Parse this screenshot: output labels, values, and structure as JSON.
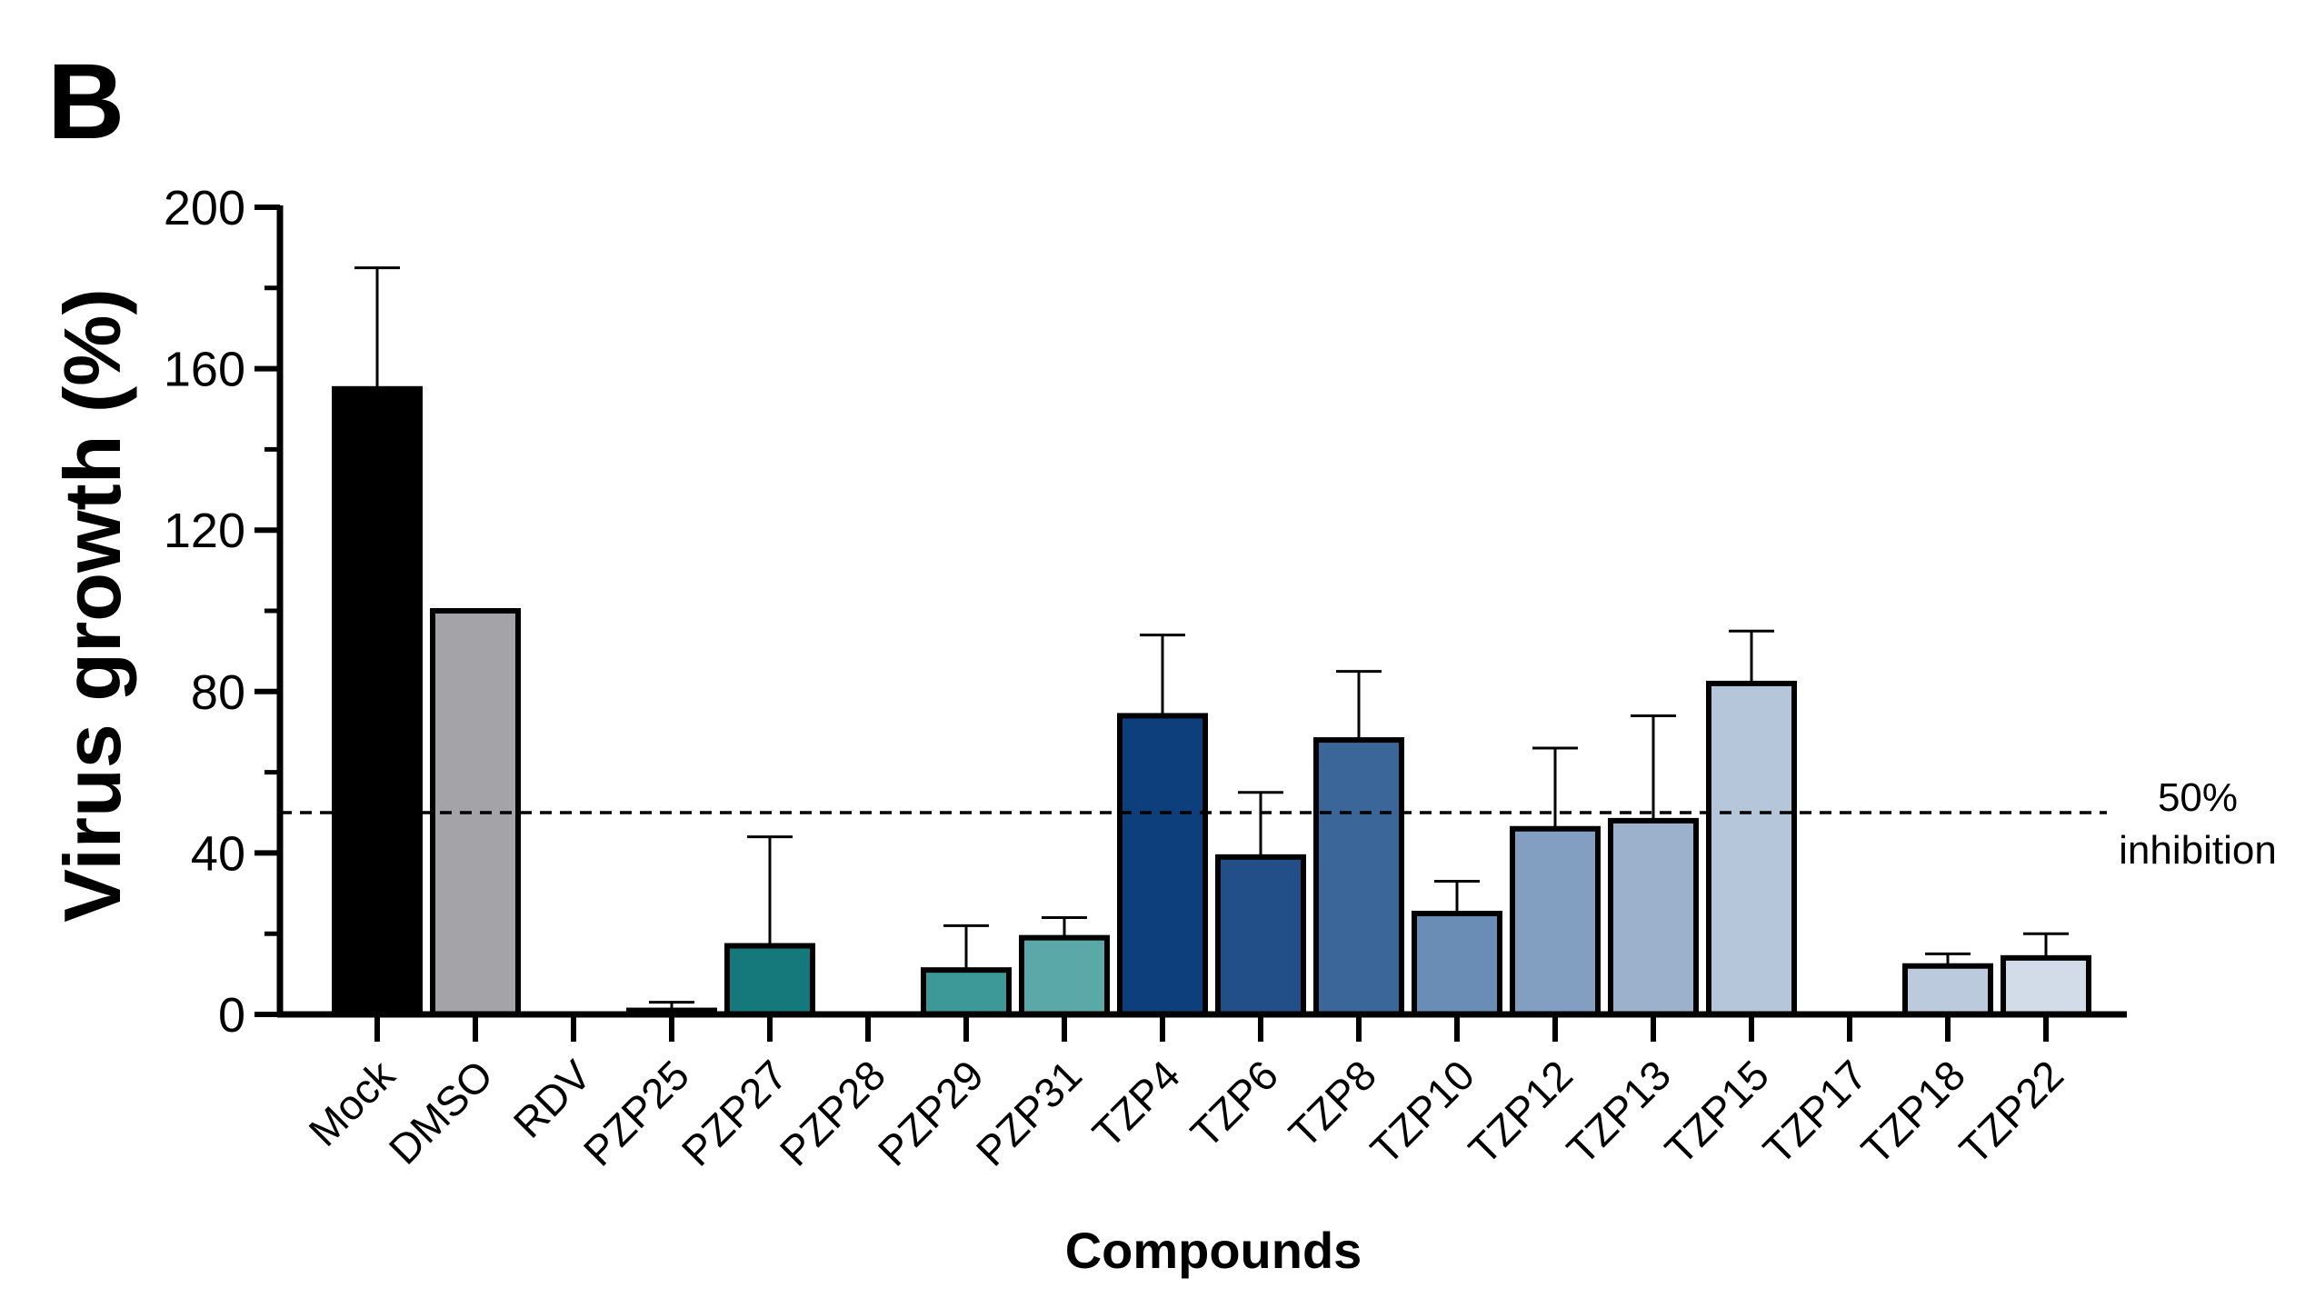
{
  "panel_label": "B",
  "chart_data": {
    "type": "bar",
    "title": "",
    "xlabel": "Compounds",
    "ylabel": "Virus growth (%)",
    "ylim": [
      0,
      200
    ],
    "yticks": [
      0,
      40,
      80,
      120,
      160,
      200
    ],
    "yticks_labels": [
      "0",
      "40",
      "80",
      "120",
      "160",
      "200"
    ],
    "categories": [
      "Mock",
      "DMSO",
      "RDV",
      "PZP25",
      "PZP27",
      "PZP28",
      "PZP29",
      "PZP31",
      "TZP4",
      "TZP6",
      "TZP8",
      "TZP10",
      "TZP12",
      "TZP13",
      "TZP15",
      "TZP17",
      "TZP18",
      "TZP22"
    ],
    "values": [
      155,
      100,
      0,
      1,
      17,
      0,
      11,
      19,
      74,
      39,
      68,
      25,
      46,
      48,
      82,
      0,
      12,
      14
    ],
    "errors_upper": [
      185,
      100,
      0,
      3,
      44,
      0,
      22,
      24,
      94,
      55,
      85,
      33,
      66,
      74,
      95,
      0,
      15,
      20
    ],
    "colors": [
      "#000000",
      "#a3a3a8",
      "#ffffff",
      "#7e9fa8",
      "#15787a",
      "#ffffff",
      "#3d9898",
      "#5ba8a8",
      "#0d3f7c",
      "#234f89",
      "#3a6699",
      "#6a8db5",
      "#829fc1",
      "#9bb1cc",
      "#b6c6da",
      "#ffffff",
      "#bccade",
      "#d2dbe8"
    ],
    "reference_line": {
      "y": 50,
      "label_line1": "50%",
      "label_line2": "inhibition"
    },
    "grid": false,
    "legend": "none"
  }
}
